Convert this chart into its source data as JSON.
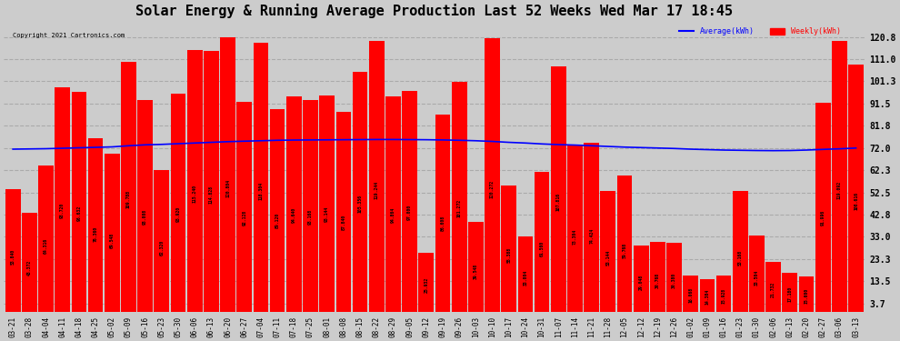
{
  "title": "Solar Energy & Running Average Production Last 52 Weeks Wed Mar 17 18:45",
  "copyright": "Copyright 2021 Cartronics.com",
  "legend_avg": "Average(kWh)",
  "legend_weekly": "Weekly(kWh)",
  "bar_color": "#ff0000",
  "avg_line_color": "#0000ff",
  "background_color": "#cccccc",
  "categories": [
    "03-21",
    "03-28",
    "04-04",
    "04-11",
    "04-18",
    "04-25",
    "05-02",
    "05-09",
    "05-16",
    "05-23",
    "05-30",
    "06-06",
    "06-13",
    "06-20",
    "06-27",
    "07-04",
    "07-11",
    "07-18",
    "07-25",
    "08-01",
    "08-08",
    "08-15",
    "08-22",
    "08-29",
    "09-05",
    "09-12",
    "09-19",
    "09-26",
    "10-03",
    "10-10",
    "10-17",
    "10-24",
    "10-31",
    "11-07",
    "11-14",
    "11-21",
    "11-28",
    "12-05",
    "12-12",
    "12-19",
    "12-26",
    "01-02",
    "01-09",
    "01-16",
    "01-23",
    "01-30",
    "02-06",
    "02-13",
    "02-20",
    "02-27",
    "03-06",
    "03-13"
  ],
  "weekly_values": [
    53.84,
    43.372,
    64.316,
    98.72,
    96.632,
    76.36,
    69.548,
    109.788,
    93.008,
    62.32,
    95.92,
    115.24,
    114.828,
    120.804,
    92.128,
    118.304,
    89.12,
    94.64,
    93.168,
    95.144,
    87.84,
    105.356,
    119.244,
    94.864,
    97.0,
    25.932,
    86.608,
    101.272,
    39.548,
    120.272,
    55.388,
    33.004,
    61.56,
    107.816,
    73.304,
    74.424,
    53.144,
    59.768,
    29.048,
    30.768,
    30.38,
    16.068,
    14.384,
    15.928,
    53.168,
    33.504,
    21.732,
    17.18,
    15.6,
    91.996,
    119.092,
    108.616
  ],
  "avg_values": [
    71.5,
    71.6,
    71.7,
    71.9,
    72.1,
    72.3,
    72.5,
    73.0,
    73.4,
    73.6,
    73.9,
    74.2,
    74.5,
    74.8,
    75.0,
    75.2,
    75.4,
    75.5,
    75.55,
    75.6,
    75.65,
    75.7,
    75.75,
    75.75,
    75.7,
    75.65,
    75.55,
    75.4,
    75.2,
    74.9,
    74.5,
    74.2,
    73.8,
    73.5,
    73.3,
    73.0,
    72.7,
    72.4,
    72.2,
    72.0,
    71.8,
    71.5,
    71.3,
    71.1,
    71.0,
    70.9,
    70.85,
    70.9,
    71.1,
    71.4,
    71.65,
    72.0
  ],
  "yticks": [
    3.7,
    13.5,
    23.3,
    33.0,
    42.8,
    52.5,
    62.3,
    72.0,
    81.8,
    91.5,
    101.3,
    111.0,
    120.8
  ],
  "ylim": [
    0,
    128
  ],
  "title_fontsize": 11,
  "grid_color": "#aaaaaa"
}
